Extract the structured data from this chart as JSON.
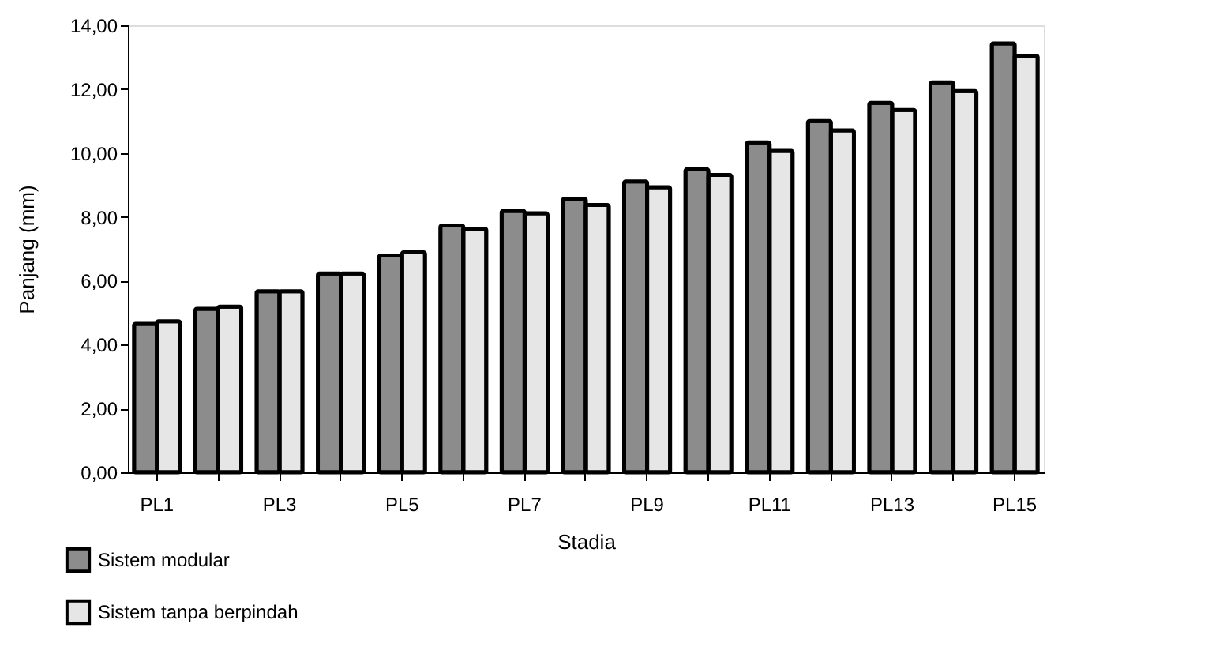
{
  "chart_data": {
    "type": "bar",
    "xlabel": "Stadia",
    "ylabel": "Panjang (mm)",
    "categories": [
      "PL1",
      null,
      "PL3",
      null,
      "PL5",
      null,
      "PL7",
      null,
      "PL9",
      null,
      "PL11",
      null,
      "PL13",
      null,
      "PL15"
    ],
    "series": [
      {
        "name": "Sistem modular",
        "color": "#8c8c8c",
        "values": [
          4.65,
          5.12,
          5.67,
          6.23,
          6.79,
          7.73,
          8.19,
          8.57,
          9.11,
          9.49,
          10.33,
          11.0,
          11.57,
          12.21,
          13.43
        ]
      },
      {
        "name": "Sistem tanpa berpindah",
        "color": "#e6e6e6",
        "values": [
          4.73,
          5.19,
          5.67,
          6.23,
          6.89,
          7.63,
          8.11,
          8.37,
          8.93,
          9.31,
          10.07,
          10.71,
          11.35,
          11.94,
          13.05
        ]
      }
    ],
    "ylim": [
      0,
      14
    ],
    "yticks": [
      {
        "value": 0,
        "label": "0,00"
      },
      {
        "value": 2,
        "label": "2,00"
      },
      {
        "value": 4,
        "label": "4,00"
      },
      {
        "value": 6,
        "label": "6,00"
      },
      {
        "value": 8,
        "label": "8,00"
      },
      {
        "value": 10,
        "label": "10,00"
      },
      {
        "value": 12,
        "label": "12,00"
      },
      {
        "value": 14,
        "label": "14,00"
      }
    ],
    "grid": false,
    "legend": "bottom left"
  }
}
